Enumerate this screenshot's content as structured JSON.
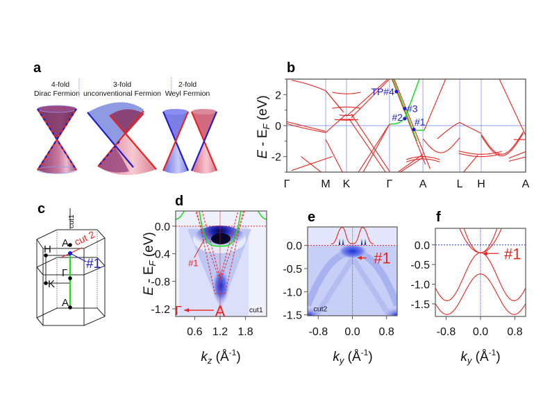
{
  "figure": {
    "panels": {
      "a": {
        "label": "a",
        "columns": [
          {
            "line1": "4-fold",
            "line2": "Dirac Fermion"
          },
          {
            "line1": "3-fold",
            "line2": "unconventional Fermion"
          },
          {
            "line1": "2-fold",
            "line2": "Weyl Fermion"
          }
        ]
      },
      "b": {
        "label": "b"
      },
      "c": {
        "label": "c",
        "points": [
          "A",
          "H",
          "Γ",
          "K",
          "A"
        ],
        "cut1": "cut1",
        "cut2": "cut 2",
        "marker": "#1"
      },
      "d": {
        "label": "d"
      },
      "e": {
        "label": "e"
      },
      "f": {
        "label": "f"
      }
    },
    "colors": {
      "band": "#e8231e",
      "highlight": "#22dd22",
      "marker": "#1c1ccc",
      "gridline": "#8a9cf0",
      "arpes_dark": "#0a0a40",
      "arpes_mid": "#2a3ae0",
      "arpes_light": "#e8ebfb"
    }
  },
  "chart_data": [
    {
      "panel": "b",
      "type": "line",
      "title": "",
      "xlabel": "",
      "ylabel": "E - E_F (eV)",
      "ylim": [
        -3,
        3
      ],
      "yticks": [
        -2,
        0,
        2
      ],
      "ytick_labels": [
        "-2",
        "0",
        "2"
      ],
      "x_points": [
        "Γ",
        "M",
        "K",
        "Γ",
        "A",
        "L",
        "H",
        "A"
      ],
      "x_positions": [
        0,
        0.163,
        0.25,
        0.43,
        0.57,
        0.724,
        0.814,
        1.0
      ],
      "grid": true,
      "annotations": [
        {
          "label": "TP#4",
          "x": 0.459,
          "y": 2.2
        },
        {
          "label": "#3",
          "x": 0.494,
          "y": 1.1
        },
        {
          "label": "#2",
          "x": 0.494,
          "y": 0.45
        },
        {
          "label": "#1",
          "x": 0.532,
          "y": -0.25
        }
      ],
      "series": [
        {
          "name": "bands",
          "color": "#e8231e"
        },
        {
          "name": "highlighted band",
          "color": "#22dd22"
        }
      ]
    },
    {
      "panel": "d",
      "type": "heatmap",
      "xlabel": "k_z (Å^-1)",
      "ylabel": "E - E_F (eV)",
      "xlim": [
        0.15,
        2.3
      ],
      "ylim": [
        -1.31,
        0.22
      ],
      "xticks": [
        0.6,
        1.2,
        1.8
      ],
      "xtick_labels": [
        "0.6",
        "1.2",
        "1.8"
      ],
      "yticks": [
        0.0,
        -0.4,
        -0.8,
        -1.2
      ],
      "ytick_labels": [
        "0.0",
        "-0.4",
        "-0.8",
        "-1.2"
      ],
      "annotations": [
        {
          "label": "#1",
          "x": 0.75,
          "y": -0.52
        },
        {
          "label": "Γ",
          "x": 0.3,
          "y": -1.22
        },
        {
          "label": "A",
          "x": 1.2,
          "y": -1.22
        },
        {
          "label": "cut1",
          "x": 2.05,
          "y": -1.2
        }
      ],
      "overlays": [
        "green calculated band",
        "red dashed calculated bands",
        "E_F dotted line"
      ]
    },
    {
      "panel": "e",
      "type": "heatmap",
      "xlabel": "k_y (Å^-1)",
      "ylabel": "",
      "xlim": [
        -1.05,
        1.05
      ],
      "ylim": [
        -1.52,
        0.4
      ],
      "xticks": [
        -0.8,
        0.0,
        0.8
      ],
      "xtick_labels": [
        "-0.8",
        "0.0",
        "0.8"
      ],
      "yticks": [
        0.0,
        -0.5,
        -1.0,
        -1.5
      ],
      "ytick_labels": [
        "0.0",
        "-0.5",
        "-1.0",
        "-1.5"
      ],
      "annotations": [
        {
          "label": "#1",
          "x": 0.5,
          "y": -0.27
        },
        {
          "label": "cut2",
          "x": -0.75,
          "y": -1.35
        }
      ],
      "overlays": [
        "MDC curve at E_F with 4 peaks",
        "E_F dotted line"
      ]
    },
    {
      "panel": "f",
      "type": "line",
      "xlabel": "k_y (Å^-1)",
      "ylabel": "",
      "xlim": [
        -1.05,
        1.05
      ],
      "ylim": [
        -1.82,
        0.42
      ],
      "xticks": [
        -0.8,
        0.0,
        0.8
      ],
      "xtick_labels": [
        "-0.8",
        "0.0",
        "0.8"
      ],
      "yticks": [
        0.0,
        -0.5,
        -1.0,
        -1.5
      ],
      "ytick_labels": [
        "0.0",
        "-0.5",
        "-1.0",
        "-1.5"
      ],
      "annotations": [
        {
          "label": "#1",
          "x": 0.55,
          "y": -0.22
        }
      ],
      "series": [
        {
          "name": "band1",
          "type": "cosine",
          "center": -0.2,
          "amp_up": true,
          "values_at_k0": -0.2,
          "min": -1.42,
          "min_at": 0.78
        },
        {
          "name": "band2",
          "values_at_k0": -0.74,
          "min": -1.77,
          "min_at": 0.78
        },
        {
          "name": "band3 upper",
          "values_at_k0": -0.2,
          "curv": "parabola-up"
        },
        {
          "name": "band4 upper",
          "values_at_k0": -0.2,
          "curv": "parabola-up"
        }
      ]
    }
  ],
  "labels": {
    "b_ylabel_E": "E",
    "b_ylabel_rest": " - E",
    "b_ylabel_sub": "F",
    "b_ylabel_unit": " (eV)",
    "k_z": "k",
    "k_z_sub": "z",
    "k_y": "k",
    "k_y_sub": "y",
    "unit_open": " (Å",
    "unit_sup": "-1",
    "unit_close": ")"
  }
}
